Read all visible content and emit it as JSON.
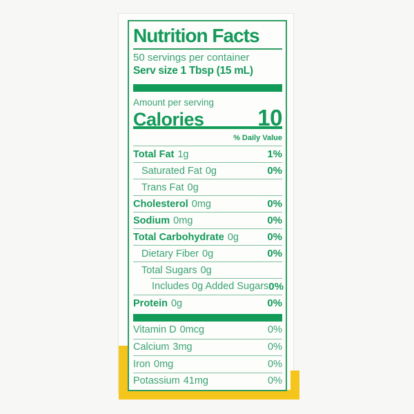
{
  "label": {
    "title": "Nutrition Facts",
    "servings_per_container": "50 servings per container",
    "serving_size": "Serv size 1 Tbsp (15 mL)",
    "amount_per_serving": "Amount per serving",
    "calories_label": "Calories",
    "calories_value": "10",
    "daily_value_header": "% Daily Value",
    "nutrient_rows": [
      {
        "name": "Total Fat",
        "amount": "1g",
        "pct": "1%",
        "bold": true,
        "indent": 0
      },
      {
        "name": "Saturated Fat",
        "amount": "0g",
        "pct": "0%",
        "bold": false,
        "indent": 1
      },
      {
        "name": "Trans Fat",
        "amount": "0g",
        "pct": "",
        "bold": false,
        "indent": 1
      },
      {
        "name": "Cholesterol",
        "amount": "0mg",
        "pct": "0%",
        "bold": true,
        "indent": 0
      },
      {
        "name": "Sodium",
        "amount": "0mg",
        "pct": "0%",
        "bold": true,
        "indent": 0
      },
      {
        "name": "Total Carbohydrate",
        "amount": "0g",
        "pct": "0%",
        "bold": true,
        "indent": 0
      },
      {
        "name": "Dietary Fiber",
        "amount": "0g",
        "pct": "0%",
        "bold": false,
        "indent": 1
      },
      {
        "name": "Total Sugars",
        "amount": "0g",
        "pct": "",
        "bold": false,
        "indent": 1
      },
      {
        "name": "Includes 0g Added Sugars",
        "amount": "",
        "pct": "0%",
        "bold": false,
        "indent": 2,
        "short_sep": true
      },
      {
        "name": "Protein",
        "amount": "0g",
        "pct": "0%",
        "bold": true,
        "indent": 0
      }
    ],
    "vitamin_rows": [
      {
        "name": "Vitamin D",
        "amount": "0mcg",
        "pct": "0%"
      },
      {
        "name": "Calcium",
        "amount": "3mg",
        "pct": "0%"
      },
      {
        "name": "Iron",
        "amount": "0mg",
        "pct": "0%"
      },
      {
        "name": "Potassium",
        "amount": "41mg",
        "pct": "0%"
      }
    ]
  },
  "colors": {
    "green_bar": "#129b58",
    "green_bold_text": "#14995a",
    "green_regular_text": "#3aa273",
    "separator": "#7fc0a0",
    "border": "#2d9c62",
    "yellow_band": "#f6c51c",
    "card_background": "#fdfdfb",
    "page_background": "#f7f7f5"
  }
}
